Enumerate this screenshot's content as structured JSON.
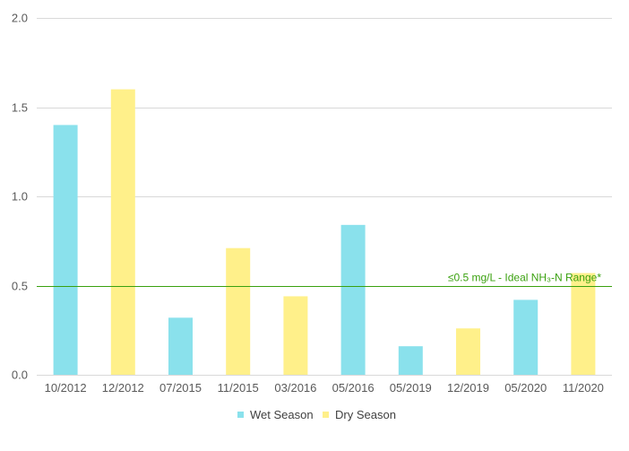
{
  "chart_data": {
    "type": "bar",
    "categories": [
      "10/2012",
      "12/2012",
      "07/2015",
      "11/2015",
      "03/2016",
      "05/2016",
      "05/2019",
      "12/2019",
      "05/2020",
      "11/2020"
    ],
    "values": [
      1.4,
      1.6,
      0.32,
      0.71,
      0.44,
      0.84,
      0.16,
      0.26,
      0.42,
      0.57
    ],
    "season": [
      "Wet Season",
      "Dry Season",
      "Wet Season",
      "Dry Season",
      "Dry Season",
      "Wet Season",
      "Wet Season",
      "Dry Season",
      "Wet Season",
      "Dry Season"
    ],
    "series": [
      {
        "name": "Wet Season",
        "color": "#8ae1ec"
      },
      {
        "name": "Dry Season",
        "color": "#fff08a"
      }
    ],
    "yticks": [
      "0.0",
      "0.5",
      "1.0",
      "1.5",
      "2.0"
    ],
    "ytick_values": [
      0,
      0.5,
      1.0,
      1.5,
      2.0
    ],
    "ylim": [
      0,
      2.0
    ],
    "grid": true,
    "legend_position": "bottom",
    "reference_line": {
      "value": 0.5,
      "label": "≤0.5 mg/L - Ideal NH₃-N Range*",
      "color": "#3aa10f"
    },
    "title": "",
    "xlabel": "",
    "ylabel": ""
  }
}
